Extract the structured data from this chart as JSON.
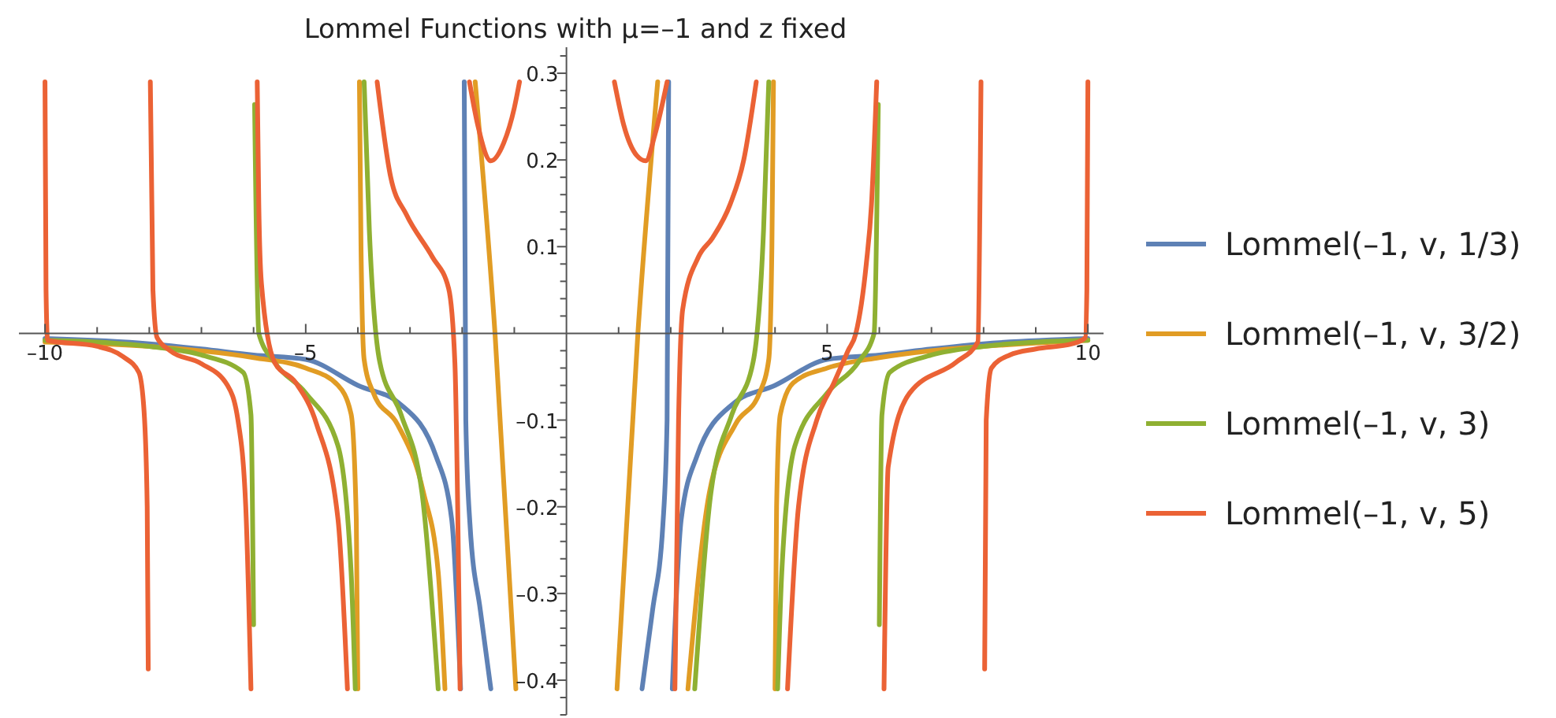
{
  "chart_data": {
    "type": "line",
    "title": "Lommel Functions with μ=–1 and z fixed",
    "xlim": [
      -10.5,
      10.3
    ],
    "ylim": [
      -0.44,
      0.33
    ],
    "xticks": [
      {
        "value": -10,
        "label": "–10"
      },
      {
        "value": -9,
        "label": null
      },
      {
        "value": -8,
        "label": null
      },
      {
        "value": -7,
        "label": null
      },
      {
        "value": -6,
        "label": null
      },
      {
        "value": -5,
        "label": "–5"
      },
      {
        "value": -4,
        "label": null
      },
      {
        "value": -3,
        "label": null
      },
      {
        "value": -2,
        "label": null
      },
      {
        "value": -1,
        "label": null
      },
      {
        "value": 1,
        "label": null
      },
      {
        "value": 2,
        "label": null
      },
      {
        "value": 3,
        "label": null
      },
      {
        "value": 4,
        "label": null
      },
      {
        "value": 5,
        "label": "5"
      },
      {
        "value": 6,
        "label": null
      },
      {
        "value": 7,
        "label": null
      },
      {
        "value": 8,
        "label": null
      },
      {
        "value": 9,
        "label": null
      },
      {
        "value": 10,
        "label": "10"
      }
    ],
    "yticks": [
      {
        "value": -0.44,
        "label": null
      },
      {
        "value": -0.42,
        "label": null
      },
      {
        "value": -0.4,
        "label": "–0.4"
      },
      {
        "value": -0.38,
        "label": null
      },
      {
        "value": -0.36,
        "label": null
      },
      {
        "value": -0.34,
        "label": null
      },
      {
        "value": -0.32,
        "label": null
      },
      {
        "value": -0.3,
        "label": "–0.3"
      },
      {
        "value": -0.28,
        "label": null
      },
      {
        "value": -0.26,
        "label": null
      },
      {
        "value": -0.24,
        "label": null
      },
      {
        "value": -0.22,
        "label": null
      },
      {
        "value": -0.2,
        "label": "–0.2"
      },
      {
        "value": -0.18,
        "label": null
      },
      {
        "value": -0.16,
        "label": null
      },
      {
        "value": -0.14,
        "label": null
      },
      {
        "value": -0.12,
        "label": null
      },
      {
        "value": -0.1,
        "label": "–0.1"
      },
      {
        "value": -0.08,
        "label": null
      },
      {
        "value": -0.06,
        "label": null
      },
      {
        "value": -0.04,
        "label": null
      },
      {
        "value": -0.02,
        "label": null
      },
      {
        "value": 0.02,
        "label": null
      },
      {
        "value": 0.04,
        "label": null
      },
      {
        "value": 0.06,
        "label": null
      },
      {
        "value": 0.08,
        "label": null
      },
      {
        "value": 0.1,
        "label": "0.1"
      },
      {
        "value": 0.12,
        "label": null
      },
      {
        "value": 0.14,
        "label": null
      },
      {
        "value": 0.16,
        "label": null
      },
      {
        "value": 0.18,
        "label": null
      },
      {
        "value": 0.2,
        "label": "0.2"
      },
      {
        "value": 0.22,
        "label": null
      },
      {
        "value": 0.24,
        "label": null
      },
      {
        "value": 0.26,
        "label": null
      },
      {
        "value": 0.28,
        "label": null
      },
      {
        "value": 0.3,
        "label": "0.3"
      },
      {
        "value": 0.32,
        "label": null
      }
    ],
    "legend": "right",
    "line_style": "solid",
    "marker": "none",
    "series": [
      {
        "name": "Lommel(–1, v, 1/3)",
        "color": "#5e81b5",
        "x": [
          -10,
          -8,
          -7,
          -6,
          -5,
          -4,
          -3.2,
          -2.5,
          -2.2,
          -2.03,
          -2.0,
          -1.96,
          -1.93,
          -1.85,
          -1.65,
          -1.45,
          -1.3,
          1.45,
          1.65,
          1.85,
          1.93,
          1.96,
          2.0,
          2.03,
          2.2,
          2.5,
          3.2,
          4,
          5,
          6,
          7,
          8,
          10
        ],
        "values": [
          -0.006,
          -0.012,
          -0.018,
          -0.025,
          -0.03,
          -0.06,
          -0.081,
          -0.142,
          -0.215,
          -0.41,
          null,
          0.29,
          -0.1,
          -0.22,
          -0.32,
          -0.41,
          null,
          -0.41,
          -0.32,
          -0.22,
          -0.1,
          0.29,
          null,
          -0.41,
          -0.215,
          -0.142,
          -0.081,
          -0.06,
          -0.03,
          -0.025,
          -0.018,
          -0.012,
          -0.006
        ]
      },
      {
        "name": "Lommel(–1, v, 3/2)",
        "color": "#e19c24",
        "x": [
          -10,
          -8,
          -6,
          -5,
          -4.38,
          -4.13,
          -4.03,
          -4.0,
          -3.99,
          -3.97,
          -3.94,
          -3.88,
          -3.7,
          -3.24,
          -2.74,
          -2.46,
          -2.33,
          -2.0,
          -1.75,
          -1.37,
          -0.97,
          -0.5,
          0.97,
          1.37,
          1.75,
          2.0,
          2.33,
          2.74,
          3.24,
          3.7,
          3.88,
          3.94,
          3.97,
          3.99,
          4.0,
          4.03,
          4.1,
          4.35,
          5,
          6,
          7,
          8,
          10
        ],
        "values": [
          -0.01,
          -0.015,
          -0.028,
          -0.04,
          -0.06,
          -0.093,
          -0.215,
          -0.41,
          null,
          0.29,
          0.1,
          -0.03,
          -0.069,
          -0.105,
          -0.184,
          -0.275,
          -0.41,
          null,
          0.29,
          0,
          -0.41,
          null,
          -0.41,
          0,
          0.29,
          null,
          -0.41,
          -0.184,
          -0.105,
          -0.069,
          -0.03,
          0.1,
          0.29,
          null,
          -0.41,
          -0.2,
          -0.094,
          -0.057,
          -0.04,
          -0.028,
          -0.02,
          -0.015,
          -0.008
        ]
      },
      {
        "name": "Lommel(–1, v, 3)",
        "color": "#8fb032",
        "x": [
          -10,
          -9,
          -8,
          -7,
          -6.2,
          -6.05,
          -6.0,
          -5.99,
          -5.98,
          -5.9,
          -5.6,
          -5,
          -4.38,
          -4.13,
          -4.05,
          -4.0,
          -3.88,
          -3.78,
          -3.58,
          -3.17,
          -2.77,
          -2.46,
          0,
          2.46,
          2.77,
          3.17,
          3.58,
          3.78,
          3.88,
          3.99,
          4.05,
          4.13,
          4.38,
          5,
          5.6,
          5.9,
          5.98,
          5.99,
          6.0,
          6.05,
          6.2,
          7,
          8,
          9,
          10
        ],
        "values": [
          -0.008,
          -0.01,
          -0.015,
          -0.025,
          -0.045,
          -0.094,
          -0.336,
          null,
          0.264,
          0,
          -0.033,
          -0.069,
          -0.13,
          -0.275,
          -0.41,
          null,
          0.29,
          0.119,
          -0.033,
          -0.094,
          -0.184,
          -0.41,
          null,
          -0.41,
          -0.184,
          -0.094,
          -0.033,
          0.119,
          0.29,
          null,
          -0.41,
          -0.275,
          -0.13,
          -0.069,
          -0.033,
          0,
          0.264,
          null,
          -0.336,
          -0.094,
          -0.045,
          -0.025,
          -0.015,
          -0.01,
          -0.008
        ]
      },
      {
        "name": "Lommel(–1, v, 5)",
        "color": "#eb6235",
        "x": [
          -10,
          -9.98,
          -9.95,
          -9,
          -8.5,
          -8.2,
          -8.1,
          -8.04,
          -8.02,
          -8.0,
          -7.98,
          -7.93,
          -7.85,
          -7.6,
          -7,
          -6.5,
          -6.3,
          -6.15,
          -6.05,
          -6.0,
          -5.93,
          -5.9,
          -5.85,
          -5.6,
          -5.19,
          -4.79,
          -4.38,
          -4.2,
          -4.0,
          -3.63,
          -3.37,
          -3.07,
          -2.57,
          -2.26,
          -2.14,
          -2.04,
          -2.0,
          -1.86,
          -1.7,
          -1.45,
          -1.2,
          -1.0,
          -0.9,
          0,
          0.92,
          1.1,
          1.35,
          1.52,
          1.7,
          1.93,
          2.0,
          2.08,
          2.15,
          2.23,
          2.53,
          2.8,
          3.14,
          3.4,
          3.64,
          4.0,
          4.24,
          4.45,
          4.8,
          5.13,
          5.4,
          5.55,
          5.75,
          5.85,
          5.95,
          6.0,
          6.09,
          6.17,
          6.58,
          7.48,
          7.89,
          7.95,
          8.0,
          8.02,
          8.05,
          8.15,
          8.5,
          9,
          9.7,
          9.95,
          9.98,
          10
        ],
        "values": [
          0.29,
          0.05,
          -0.008,
          -0.015,
          -0.027,
          -0.045,
          -0.09,
          -0.2,
          -0.387,
          null,
          0.29,
          0.05,
          -0.005,
          -0.02,
          -0.035,
          -0.06,
          -0.1,
          -0.2,
          -0.41,
          null,
          0.29,
          0.149,
          0.058,
          -0.033,
          -0.057,
          -0.105,
          -0.215,
          -0.41,
          null,
          0.29,
          0.18,
          0.137,
          0.088,
          0.052,
          -0.033,
          -0.41,
          null,
          0.29,
          0.24,
          0.199,
          0.22,
          0.26,
          0.29,
          null,
          0.29,
          0.24,
          0.205,
          0.199,
          0.23,
          0.29,
          null,
          -0.41,
          -0.1,
          0.028,
          0.088,
          0.11,
          0.149,
          0.2,
          0.29,
          null,
          -0.41,
          -0.2,
          -0.1,
          -0.057,
          -0.02,
          0,
          0.08,
          0.149,
          0.29,
          null,
          -0.41,
          -0.154,
          -0.069,
          -0.033,
          -0.01,
          0.29,
          null,
          -0.387,
          -0.1,
          -0.04,
          -0.025,
          -0.018,
          -0.012,
          -0.005,
          0.05,
          0.29
        ]
      }
    ]
  }
}
